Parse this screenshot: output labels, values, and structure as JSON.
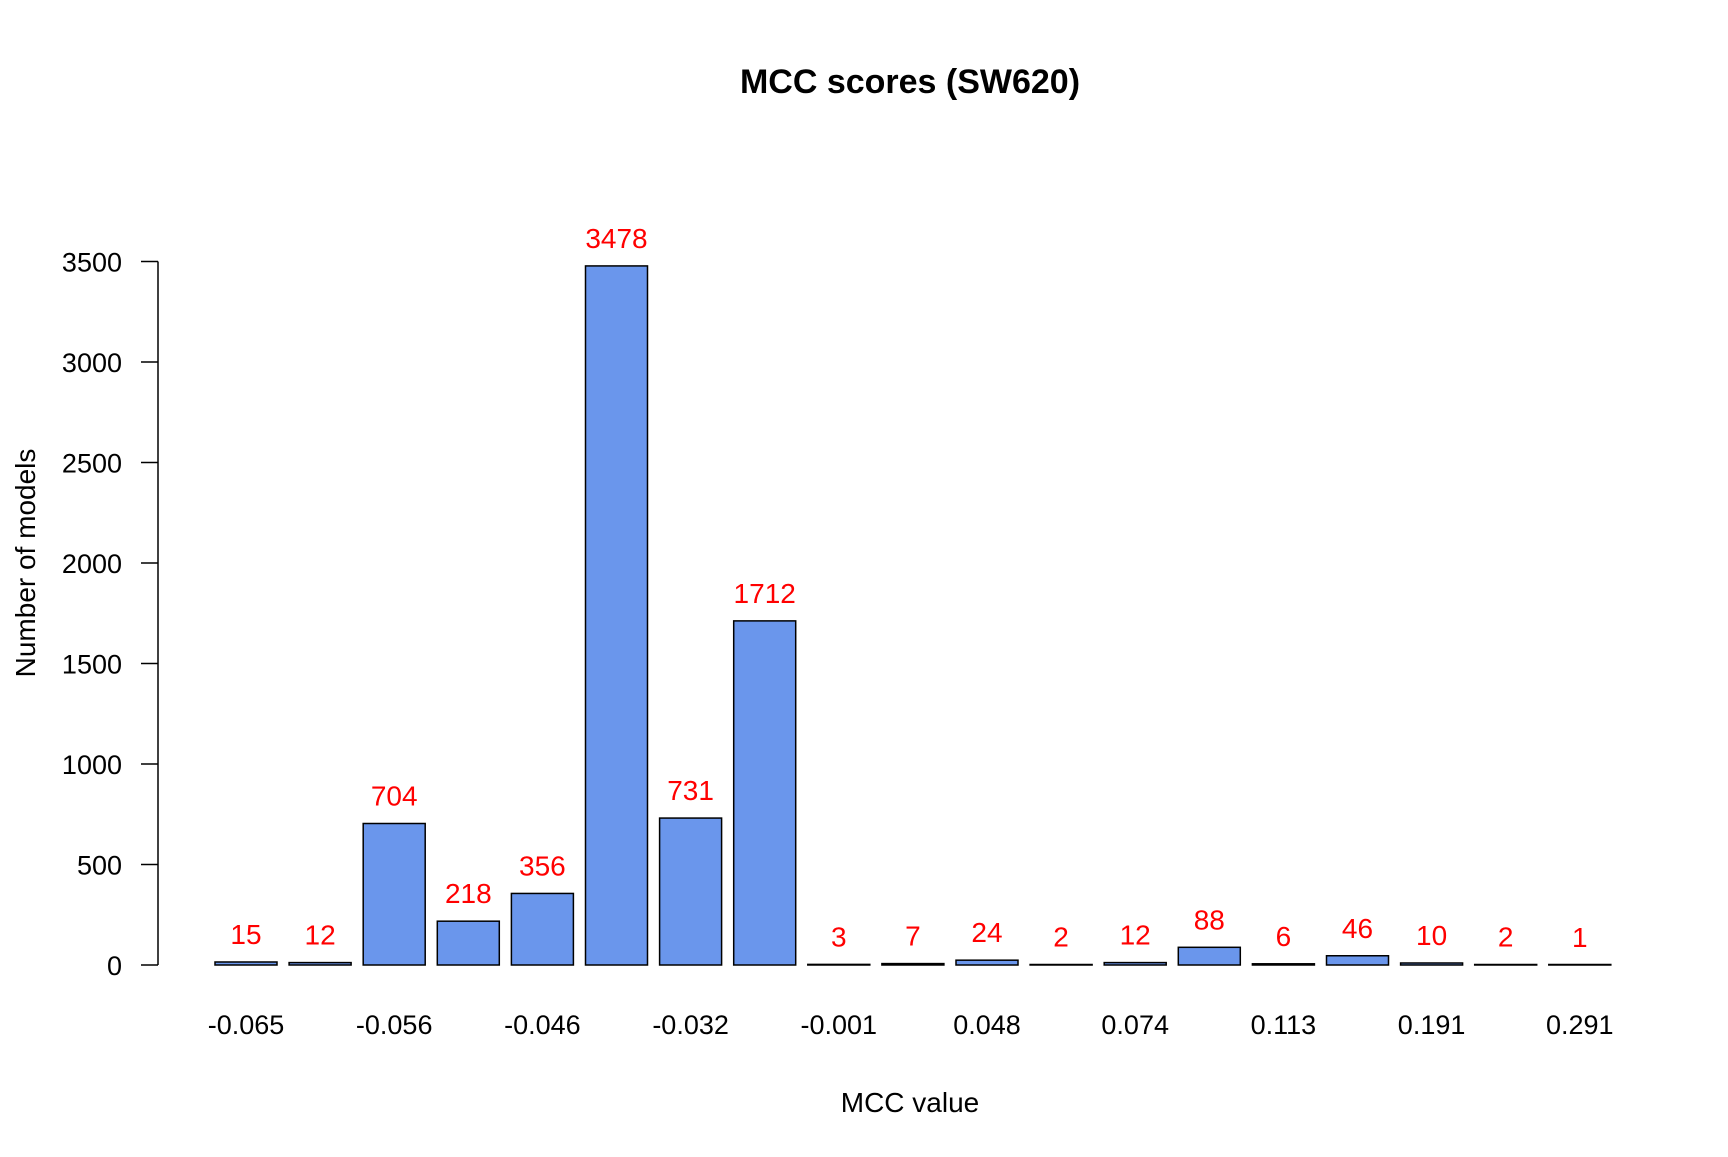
{
  "chart_data": {
    "type": "bar",
    "title": "MCC scores (SW620)",
    "xlabel": "MCC value",
    "ylabel": "Number of models",
    "categories": [
      "-0.065",
      "",
      "-0.056",
      "",
      "-0.046",
      "",
      "-0.032",
      "",
      "-0.001",
      "",
      "0.048",
      "",
      "0.074",
      "",
      "0.113",
      "",
      "0.191",
      "",
      "0.291"
    ],
    "values": [
      15,
      12,
      704,
      218,
      356,
      3478,
      731,
      1712,
      3,
      7,
      24,
      2,
      12,
      88,
      6,
      46,
      10,
      2,
      1
    ],
    "value_labels": [
      "15",
      "12",
      "704",
      "218",
      "356",
      "3478",
      "731",
      "1712",
      "3",
      "7",
      "24",
      "2",
      "12",
      "88",
      "6",
      "46",
      "10",
      "2",
      "1"
    ],
    "y_ticks": [
      0,
      500,
      1000,
      1500,
      2000,
      2500,
      3000,
      3500
    ],
    "y_tick_labels": [
      "0",
      "500",
      "1000",
      "1500",
      "2000",
      "2500",
      "3000",
      "3500"
    ],
    "ylim": [
      0,
      3500
    ],
    "grid": false,
    "bar_color": "#6A96EC",
    "bar_edge_color": "#000000",
    "label_color": "#FF0000"
  }
}
